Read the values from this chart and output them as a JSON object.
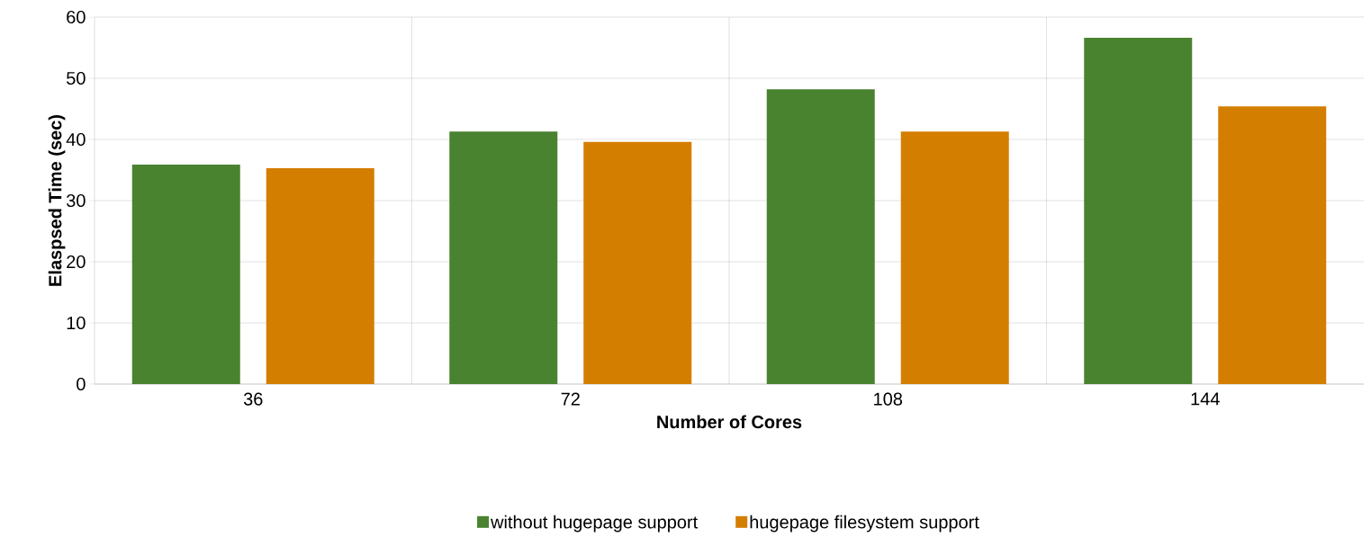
{
  "chart_data": {
    "type": "bar",
    "xlabel": "Number  of Cores",
    "ylabel": "Elaspsed Time (sec)",
    "categories": [
      "36",
      "72",
      "108",
      "144"
    ],
    "series": [
      {
        "name": "without hugepage support",
        "color": "#4a8330",
        "values": [
          35.9,
          41.3,
          48.2,
          56.6
        ]
      },
      {
        "name": "hugepage filesystem support",
        "color": "#d47e00",
        "values": [
          35.3,
          39.6,
          41.3,
          45.4
        ]
      }
    ],
    "ylim": [
      0,
      60
    ],
    "yticks": [
      0,
      10,
      20,
      30,
      40,
      50,
      60
    ],
    "grid": true,
    "legend": "bottom"
  }
}
